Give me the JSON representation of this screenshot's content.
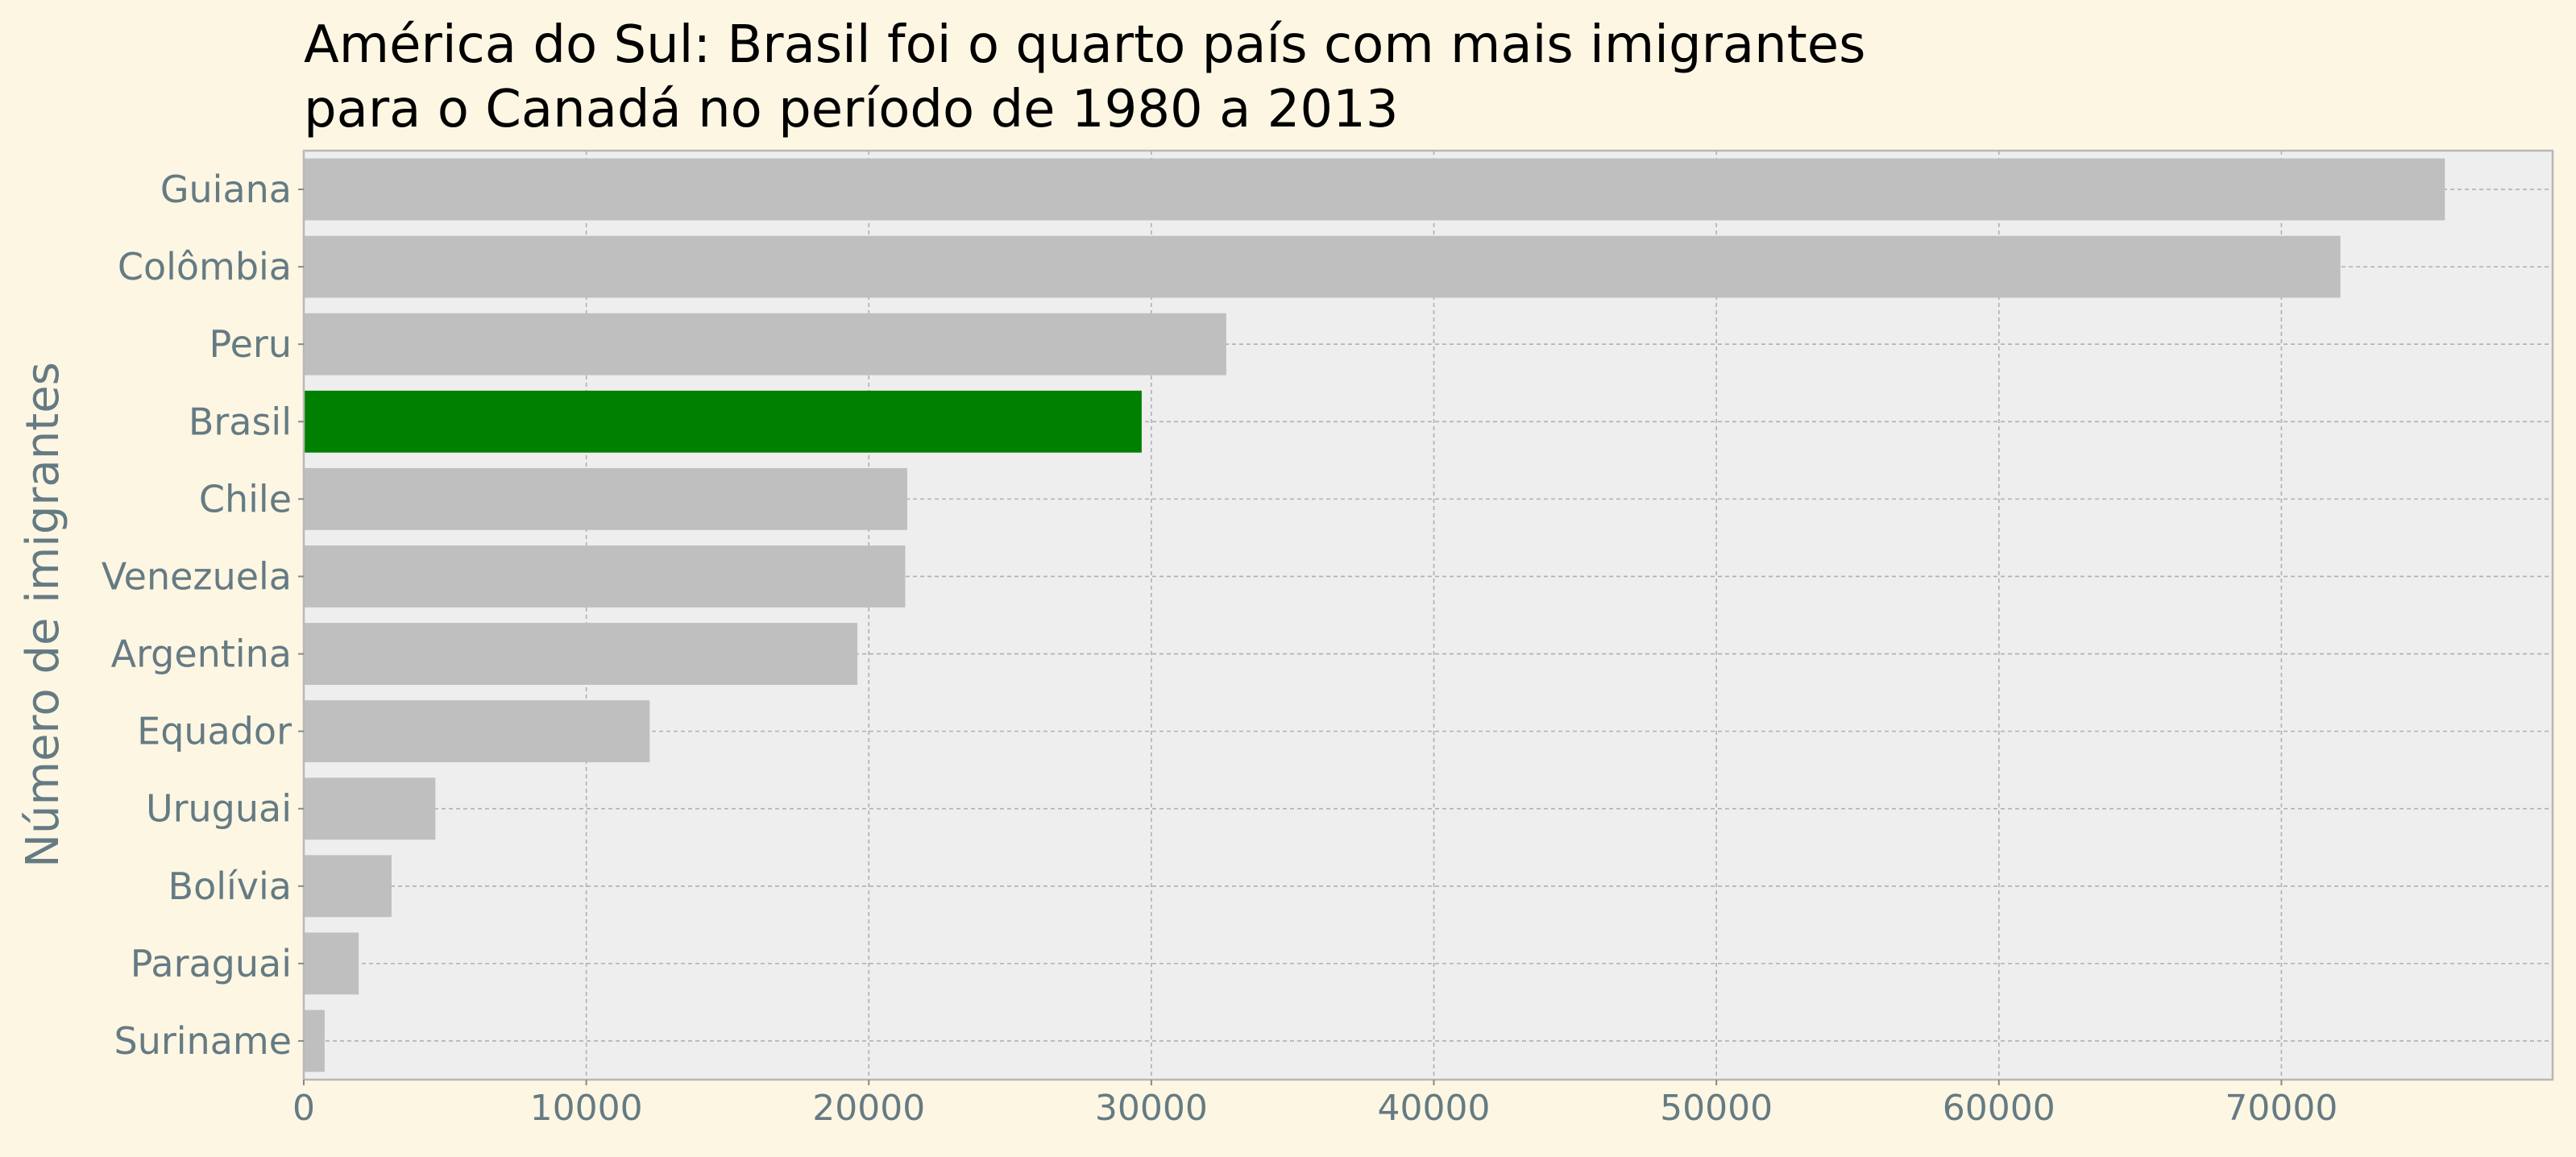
{
  "chart_data": {
    "type": "bar",
    "orientation": "horizontal",
    "title_lines": [
      "América do Sul: Brasil foi o quarto país com mais imigrantes",
      "para o Canadá no período de 1980 a 2013"
    ],
    "ylabel": "Número de imigrantes",
    "xlabel": "",
    "categories": [
      "Guiana",
      "Colômbia",
      "Peru",
      "Brasil",
      "Chile",
      "Venezuela",
      "Argentina",
      "Equador",
      "Uruguai",
      "Bolívia",
      "Paraguai",
      "Suriname"
    ],
    "values": [
      75785,
      72088,
      32652,
      29659,
      21359,
      21290,
      19596,
      12245,
      4659,
      3108,
      1944,
      739
    ],
    "highlight": "Brasil",
    "xlim": [
      0,
      79600
    ],
    "xticks": [
      0,
      10000,
      20000,
      30000,
      40000,
      50000,
      60000,
      70000
    ],
    "xtick_labels": [
      "0",
      "10000",
      "20000",
      "30000",
      "40000",
      "50000",
      "60000",
      "70000"
    ],
    "grid": true,
    "colors": {
      "figure_background": "#fdf6e3",
      "plot_background": "#eeeeee",
      "bar": "#bfbfbf",
      "highlight_bar": "#008000",
      "grid": "#b0b0b0",
      "tick_text": "#657b83",
      "title_text": "#000000"
    }
  }
}
